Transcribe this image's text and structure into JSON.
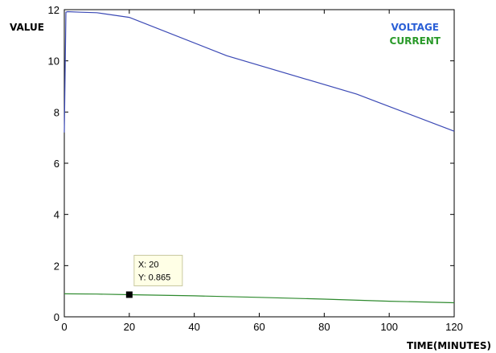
{
  "chart_data": {
    "type": "line",
    "title": "",
    "ylabel": "VALUE",
    "xlabel": "TIME(MINUTES)",
    "xlim": [
      0,
      120
    ],
    "ylim": [
      0,
      12
    ],
    "x_ticks": [
      "0",
      "20",
      "40",
      "60",
      "80",
      "100",
      "120"
    ],
    "y_ticks": [
      "0",
      "2",
      "4",
      "6",
      "8",
      "10",
      "12"
    ],
    "grid": false,
    "legend_position": "top-right",
    "series": [
      {
        "name": "VOLTAGE",
        "color": "#3b49b5",
        "x": [
          0,
          0.5,
          1,
          5,
          10,
          20,
          50,
          90,
          120
        ],
        "y": [
          7.2,
          11.9,
          11.92,
          11.9,
          11.88,
          11.7,
          10.2,
          8.7,
          7.25
        ]
      },
      {
        "name": "CURRENT",
        "color": "#2e8a2e",
        "x": [
          0,
          10,
          20,
          40,
          60,
          80,
          100,
          120
        ],
        "y": [
          0.9,
          0.89,
          0.865,
          0.82,
          0.76,
          0.69,
          0.61,
          0.55
        ]
      }
    ],
    "legend": [
      {
        "label": "VOLTAGE",
        "color": "#2a5fd6"
      },
      {
        "label": "CURRENT",
        "color": "#2a9a2a"
      }
    ],
    "datatip": {
      "x": 20,
      "y": 0.865,
      "x_text": "X: 20",
      "y_text": "Y: 0.865"
    }
  }
}
